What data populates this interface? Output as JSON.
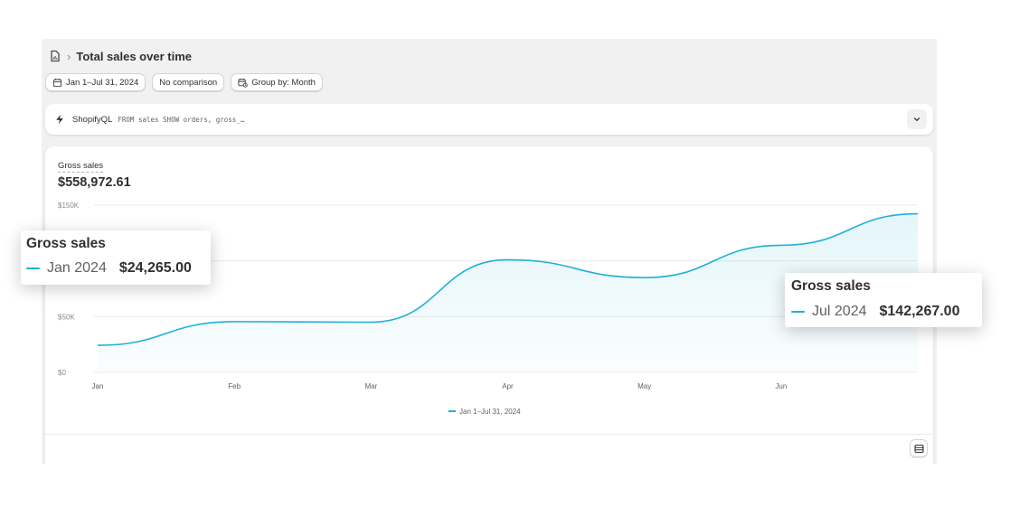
{
  "header": {
    "breadcrumb_icon": "report-icon",
    "separator": "›",
    "title": "Total sales over time"
  },
  "filters": {
    "date_range": "Jan 1–Jul 31, 2024",
    "comparison": "No comparison",
    "group_by": "Group by: Month"
  },
  "query": {
    "label": "ShopifyQL",
    "code": "FROM sales SHOW orders, gross_…"
  },
  "metric": {
    "label": "Gross sales",
    "value": "$558,972.61"
  },
  "chart_data": {
    "type": "area",
    "categories": [
      "Jan",
      "Feb",
      "Mar",
      "Apr",
      "May",
      "Jun",
      "Jul"
    ],
    "x_tick_labels": [
      "Jan",
      "Feb",
      "Mar",
      "Apr",
      "May",
      "Jun"
    ],
    "series": [
      {
        "name": "Jan 1–Jul 31, 2024",
        "values": [
          24265,
          45500,
          45000,
          101000,
          85000,
          114000,
          142267
        ]
      }
    ],
    "y_tick_labels": [
      "$150K",
      "$50K",
      "$0"
    ],
    "ylim": [
      0,
      150000
    ],
    "grid": true,
    "legend": "bottom-center",
    "color": "#1fb0d8"
  },
  "tooltips": [
    {
      "title": "Gross sales",
      "period": "Jan 2024",
      "amount": "$24,265.00"
    },
    {
      "title": "Gross sales",
      "period": "Jul 2024",
      "amount": "$142,267.00"
    }
  ]
}
